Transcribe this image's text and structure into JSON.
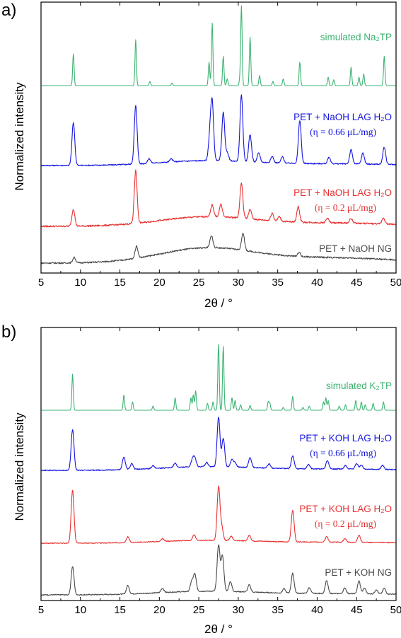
{
  "chart_data": [
    {
      "panel": "a)",
      "type": "line",
      "xlabel": "2θ / °",
      "ylabel": "Normalized intensity",
      "xlim": [
        5,
        50
      ],
      "xticks": [
        5,
        10,
        15,
        20,
        25,
        30,
        35,
        40,
        45,
        50
      ],
      "series": [
        {
          "name": "simulated Na₂TP",
          "sub": "",
          "color": "#3cb371",
          "baseline": 0.0,
          "noise": 0.0,
          "hump": 0.0,
          "peaks": [
            [
              9.1,
              0.38
            ],
            [
              17.0,
              0.55
            ],
            [
              18.8,
              0.05
            ],
            [
              21.6,
              0.03
            ],
            [
              26.3,
              0.28
            ],
            [
              26.7,
              0.75
            ],
            [
              28.1,
              0.35
            ],
            [
              28.6,
              0.08
            ],
            [
              30.2,
              0.07
            ],
            [
              30.4,
              0.95
            ],
            [
              31.5,
              0.58
            ],
            [
              32.7,
              0.12
            ],
            [
              34.4,
              0.05
            ],
            [
              35.7,
              0.08
            ],
            [
              37.8,
              0.28
            ],
            [
              41.4,
              0.1
            ],
            [
              42.1,
              0.07
            ],
            [
              44.3,
              0.22
            ],
            [
              45.3,
              0.1
            ],
            [
              45.9,
              0.14
            ],
            [
              48.5,
              0.35
            ]
          ]
        },
        {
          "name": "PET + NaOH LAG H₂O",
          "sub": "(η = 0.66 μL/mg)",
          "color": "#1515e0",
          "baseline": 0.0,
          "noise": 0.015,
          "hump": 0.06,
          "peaks": [
            [
              9.1,
              0.55
            ],
            [
              17.0,
              0.75
            ],
            [
              18.7,
              0.06
            ],
            [
              21.5,
              0.04
            ],
            [
              26.4,
              0.3
            ],
            [
              26.7,
              0.72
            ],
            [
              28.1,
              0.62
            ],
            [
              28.6,
              0.1
            ],
            [
              30.4,
              0.85
            ],
            [
              31.5,
              0.35
            ],
            [
              32.6,
              0.12
            ],
            [
              34.3,
              0.08
            ],
            [
              35.6,
              0.08
            ],
            [
              37.8,
              0.55
            ],
            [
              41.5,
              0.08
            ],
            [
              44.3,
              0.18
            ],
            [
              45.8,
              0.14
            ],
            [
              48.5,
              0.22
            ]
          ]
        },
        {
          "name": "PET + NaOH LAG H₂O",
          "sub": "(η = 0.2 μL/mg)",
          "color": "#e83030",
          "baseline": 0.0,
          "noise": 0.02,
          "hump": 0.12,
          "peaks": [
            [
              9.1,
              0.22
            ],
            [
              17.0,
              0.68
            ],
            [
              26.7,
              0.15
            ],
            [
              27.8,
              0.16
            ],
            [
              30.4,
              0.45
            ],
            [
              31.5,
              0.12
            ],
            [
              34.3,
              0.1
            ],
            [
              35.2,
              0.06
            ],
            [
              37.6,
              0.2
            ],
            [
              41.3,
              0.06
            ],
            [
              44.3,
              0.06
            ],
            [
              48.4,
              0.08
            ]
          ]
        },
        {
          "name": "PET + NaOH NG",
          "sub": "",
          "color": "#4a4a4a",
          "baseline": 0.0,
          "noise": 0.022,
          "hump": 0.22,
          "peaks": [
            [
              9.2,
              0.08
            ],
            [
              17.1,
              0.18
            ],
            [
              26.6,
              0.18
            ],
            [
              30.6,
              0.26
            ],
            [
              37.7,
              0.06
            ]
          ]
        }
      ]
    },
    {
      "panel": "b)",
      "type": "line",
      "xlabel": "2θ / °",
      "ylabel": "Normalized intensity",
      "xlim": [
        5,
        50
      ],
      "xticks": [
        5,
        10,
        15,
        20,
        25,
        30,
        35,
        40,
        45,
        50
      ],
      "series": [
        {
          "name": "simulated K₂TP",
          "sub": "",
          "color": "#3cb371",
          "baseline": 0.0,
          "noise": 0.0,
          "hump": 0.0,
          "peaks": [
            [
              9.0,
              0.52
            ],
            [
              15.5,
              0.22
            ],
            [
              16.6,
              0.12
            ],
            [
              19.2,
              0.06
            ],
            [
              22.0,
              0.18
            ],
            [
              24.0,
              0.18
            ],
            [
              24.3,
              0.22
            ],
            [
              24.6,
              0.28
            ],
            [
              26.1,
              0.1
            ],
            [
              26.8,
              0.12
            ],
            [
              27.5,
              0.95
            ],
            [
              28.1,
              0.92
            ],
            [
              29.2,
              0.18
            ],
            [
              29.6,
              0.14
            ],
            [
              30.3,
              0.08
            ],
            [
              31.5,
              0.07
            ],
            [
              33.8,
              0.12
            ],
            [
              34.0,
              0.1
            ],
            [
              35.7,
              0.04
            ],
            [
              36.9,
              0.2
            ],
            [
              38.2,
              0.04
            ],
            [
              39.0,
              0.06
            ],
            [
              40.8,
              0.12
            ],
            [
              41.1,
              0.18
            ],
            [
              41.4,
              0.14
            ],
            [
              42.8,
              0.06
            ],
            [
              43.6,
              0.08
            ],
            [
              44.9,
              0.14
            ],
            [
              45.6,
              0.12
            ],
            [
              46.1,
              0.08
            ],
            [
              47.1,
              0.1
            ],
            [
              48.4,
              0.12
            ]
          ]
        },
        {
          "name": "PET + KOH LAG H₂O",
          "sub": "(η = 0.66 μL/mg)",
          "color": "#1515e0",
          "baseline": 0.0,
          "noise": 0.014,
          "hump": 0.05,
          "peaks": [
            [
              9.0,
              0.58
            ],
            [
              15.5,
              0.18
            ],
            [
              16.5,
              0.08
            ],
            [
              19.2,
              0.04
            ],
            [
              22.0,
              0.06
            ],
            [
              24.2,
              0.1
            ],
            [
              24.5,
              0.12
            ],
            [
              26.0,
              0.06
            ],
            [
              27.5,
              0.7
            ],
            [
              28.1,
              0.4
            ],
            [
              29.2,
              0.1
            ],
            [
              29.6,
              0.06
            ],
            [
              31.5,
              0.14
            ],
            [
              33.9,
              0.06
            ],
            [
              36.9,
              0.18
            ],
            [
              38.9,
              0.06
            ],
            [
              41.3,
              0.12
            ],
            [
              43.6,
              0.05
            ],
            [
              45.0,
              0.08
            ],
            [
              45.6,
              0.06
            ],
            [
              48.3,
              0.06
            ]
          ]
        },
        {
          "name": "PET + KOH LAG H₂O",
          "sub": "(η = 0.2 μL/mg)",
          "color": "#e83030",
          "baseline": 0.0,
          "noise": 0.012,
          "hump": 0.04,
          "peaks": [
            [
              9.0,
              0.75
            ],
            [
              16.0,
              0.08
            ],
            [
              20.4,
              0.04
            ],
            [
              24.4,
              0.08
            ],
            [
              27.5,
              0.75
            ],
            [
              27.9,
              0.18
            ],
            [
              29.1,
              0.06
            ],
            [
              31.4,
              0.08
            ],
            [
              36.9,
              0.45
            ],
            [
              41.2,
              0.08
            ],
            [
              43.5,
              0.05
            ],
            [
              45.3,
              0.1
            ]
          ]
        },
        {
          "name": "PET + KOH NG",
          "sub": "",
          "color": "#4a4a4a",
          "baseline": 0.0,
          "noise": 0.014,
          "hump": 0.05,
          "peaks": [
            [
              9.0,
              0.4
            ],
            [
              16.0,
              0.12
            ],
            [
              20.4,
              0.06
            ],
            [
              24.1,
              0.14
            ],
            [
              24.5,
              0.24
            ],
            [
              27.5,
              0.65
            ],
            [
              28.0,
              0.5
            ],
            [
              29.0,
              0.14
            ],
            [
              31.4,
              0.1
            ],
            [
              35.8,
              0.06
            ],
            [
              36.9,
              0.28
            ],
            [
              39.0,
              0.08
            ],
            [
              41.2,
              0.18
            ],
            [
              43.5,
              0.08
            ],
            [
              45.3,
              0.18
            ],
            [
              46.0,
              0.08
            ],
            [
              47.5,
              0.06
            ],
            [
              48.5,
              0.08
            ]
          ]
        }
      ]
    }
  ]
}
